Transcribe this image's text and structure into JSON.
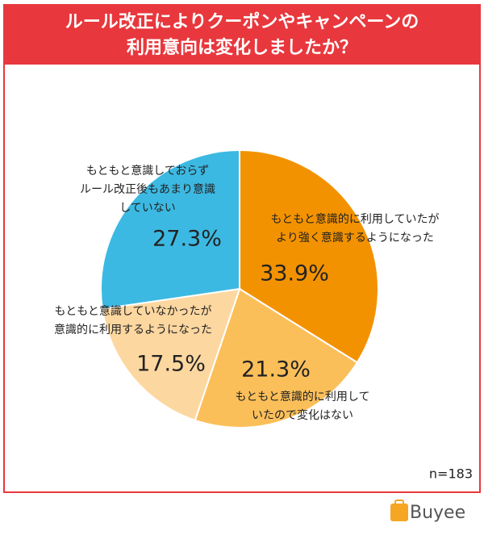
{
  "chart_data": {
    "type": "pie",
    "title": [
      "ルール改正によりクーポンやキャンペーンの",
      "利用意向は変化しましたか？"
    ],
    "categories": [
      [
        "もともと意識的に利用していたが",
        "より強く意識するようになった"
      ],
      [
        "もともと意識的に利用して",
        "いたので変化はない"
      ],
      [
        "もともと意識していなかったが",
        "意識的に利用するようになった"
      ],
      [
        "もともと意識しておらず",
        "ルール改正後もあまり意識",
        "していない"
      ]
    ],
    "values": [
      33.9,
      21.3,
      17.5,
      27.3
    ],
    "value_labels": [
      "33.9%",
      "21.3%",
      "17.5%",
      "27.3%"
    ],
    "colors": [
      "#f39200",
      "#fbbf5a",
      "#fdd7a0",
      "#3cb9e2"
    ],
    "note": "n=183",
    "brand": "Buyee"
  }
}
